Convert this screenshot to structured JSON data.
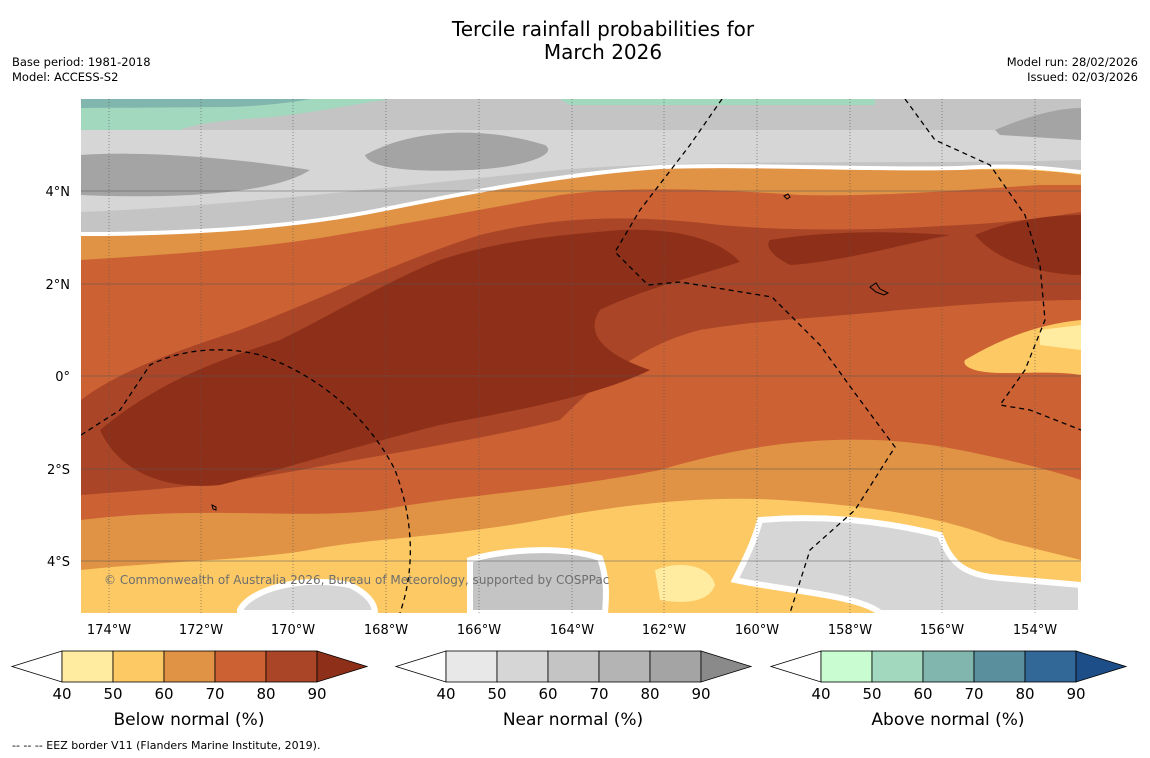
{
  "title": {
    "line1": "Tercile rainfall probabilities for",
    "line2": "March 2026"
  },
  "meta": {
    "base_period": "Base period: 1981-2018",
    "model": "Model: ACCESS-S2",
    "model_run": "Model run: 28/02/2026",
    "issued": "Issued: 02/03/2026"
  },
  "map": {
    "lat_labels": [
      "4°N",
      "2°N",
      "0°",
      "2°S",
      "4°S"
    ],
    "lon_labels": [
      "174°W",
      "172°W",
      "170°W",
      "168°W",
      "166°W",
      "164°W",
      "162°W",
      "160°W",
      "158°W",
      "156°W",
      "154°W"
    ],
    "copyright": "© Commonwealth of Australia 2026, Bureau of Meteorology, supported by COSPPac"
  },
  "colorbars": [
    {
      "label": "Below normal (%)",
      "ticks": [
        "40",
        "50",
        "60",
        "70",
        "80",
        "90"
      ],
      "colors": [
        "#ffffff",
        "#ffeca0",
        "#fdc964",
        "#e09245",
        "#cc6133",
        "#aa4627",
        "#8e3019"
      ]
    },
    {
      "label": "Near normal (%)",
      "ticks": [
        "40",
        "50",
        "60",
        "70",
        "80",
        "90"
      ],
      "colors": [
        "#ffffff",
        "#e8e8e8",
        "#d6d6d6",
        "#c4c4c4",
        "#b4b4b4",
        "#a4a4a4",
        "#8a8a8a"
      ]
    },
    {
      "label": "Above normal (%)",
      "ticks": [
        "40",
        "50",
        "60",
        "70",
        "80",
        "90"
      ],
      "colors": [
        "#ffffff",
        "#c9fcd1",
        "#a2d8bd",
        "#80b6ad",
        "#5a8f9e",
        "#316898",
        "#1d4e87"
      ]
    }
  ],
  "footer": "--  --  -- EEZ border V11 (Flanders Marine Institute, 2019)."
}
